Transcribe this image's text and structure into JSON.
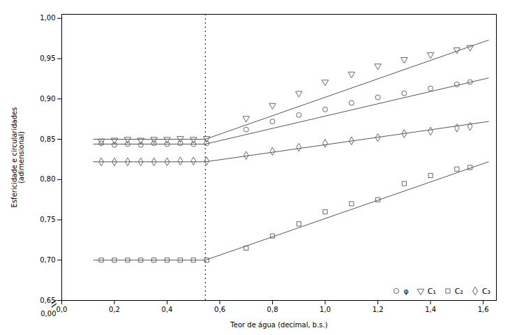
{
  "chart_data": {
    "type": "scatter",
    "xlabel": "Teor de água (decimal, b.s.)",
    "ylabel": "Esfericidade e circularidades\n(adimensional)",
    "xlim": [
      0.0,
      1.65
    ],
    "ylim": [
      0.65,
      1.005
    ],
    "xticks": [
      {
        "value": 0.0,
        "label": "0,0"
      },
      {
        "value": 0.2,
        "label": "0,2"
      },
      {
        "value": 0.4,
        "label": "0,4"
      },
      {
        "value": 0.6,
        "label": "0,6"
      },
      {
        "value": 0.8,
        "label": "0,8"
      },
      {
        "value": 1.0,
        "label": "1,0"
      },
      {
        "value": 1.2,
        "label": "1,2"
      },
      {
        "value": 1.4,
        "label": "1,4"
      },
      {
        "value": 1.6,
        "label": "1,6"
      }
    ],
    "yticks": [
      {
        "value": 0.65,
        "label": "0,65"
      },
      {
        "value": 0.7,
        "label": "0,70"
      },
      {
        "value": 0.75,
        "label": "0,75"
      },
      {
        "value": 0.8,
        "label": "0,80"
      },
      {
        "value": 0.85,
        "label": "0,85"
      },
      {
        "value": 0.9,
        "label": "0,90"
      },
      {
        "value": 0.95,
        "label": "0,95"
      },
      {
        "value": 1.0,
        "label": "1,00"
      }
    ],
    "grid": false,
    "legend": "lower right",
    "annotations": [
      {
        "text": "0,00"
      }
    ],
    "vlines": [
      {
        "x": 0.545,
        "color": "#000000",
        "line_style": "dotted"
      }
    ],
    "series": [
      {
        "name": "φ",
        "color": "#555555",
        "marker": "circle",
        "x": [
          0.15,
          0.2,
          0.25,
          0.3,
          0.35,
          0.4,
          0.45,
          0.5,
          0.55,
          0.7,
          0.8,
          0.9,
          1.0,
          1.1,
          1.2,
          1.3,
          1.4,
          1.5,
          1.55
        ],
        "values": [
          0.845,
          0.843,
          0.844,
          0.843,
          0.845,
          0.844,
          0.845,
          0.844,
          0.845,
          0.862,
          0.872,
          0.88,
          0.887,
          0.895,
          0.902,
          0.907,
          0.913,
          0.918,
          0.921
        ],
        "fit_x": [
          [
            0.12,
            0.545
          ],
          [
            0.545,
            1.62
          ]
        ],
        "fit_y": [
          [
            0.844,
            0.844
          ],
          [
            0.844,
            0.926
          ]
        ]
      },
      {
        "name": "C₁",
        "color": "#555555",
        "marker": "triangle-down",
        "x": [
          0.15,
          0.2,
          0.25,
          0.3,
          0.35,
          0.4,
          0.45,
          0.5,
          0.55,
          0.7,
          0.8,
          0.9,
          1.0,
          1.1,
          1.2,
          1.3,
          1.4,
          1.5,
          1.55
        ],
        "values": [
          0.848,
          0.849,
          0.85,
          0.849,
          0.85,
          0.85,
          0.851,
          0.85,
          0.851,
          0.876,
          0.892,
          0.907,
          0.921,
          0.931,
          0.941,
          0.949,
          0.955,
          0.961,
          0.964
        ],
        "fit_x": [
          [
            0.12,
            0.545
          ],
          [
            0.545,
            1.62
          ]
        ],
        "fit_y": [
          [
            0.85,
            0.85
          ],
          [
            0.85,
            0.973
          ]
        ]
      },
      {
        "name": "C₂",
        "color": "#555555",
        "marker": "square",
        "x": [
          0.15,
          0.2,
          0.25,
          0.3,
          0.35,
          0.4,
          0.45,
          0.5,
          0.55,
          0.7,
          0.8,
          0.9,
          1.0,
          1.1,
          1.2,
          1.3,
          1.4,
          1.5,
          1.55
        ],
        "values": [
          0.7,
          0.7,
          0.7,
          0.7,
          0.7,
          0.7,
          0.7,
          0.7,
          0.7,
          0.715,
          0.73,
          0.745,
          0.76,
          0.77,
          0.775,
          0.795,
          0.805,
          0.813,
          0.815
        ],
        "fit_x": [
          [
            0.12,
            0.545
          ],
          [
            0.545,
            1.62
          ]
        ],
        "fit_y": [
          [
            0.7,
            0.7
          ],
          [
            0.7,
            0.822
          ]
        ]
      },
      {
        "name": "C₃",
        "color": "#555555",
        "marker": "diamond",
        "x": [
          0.15,
          0.2,
          0.25,
          0.3,
          0.35,
          0.4,
          0.45,
          0.5,
          0.55,
          0.7,
          0.8,
          0.9,
          1.0,
          1.1,
          1.2,
          1.3,
          1.4,
          1.5,
          1.55
        ],
        "values": [
          0.822,
          0.822,
          0.822,
          0.822,
          0.822,
          0.822,
          0.823,
          0.823,
          0.823,
          0.83,
          0.835,
          0.84,
          0.845,
          0.848,
          0.852,
          0.857,
          0.86,
          0.864,
          0.866
        ],
        "fit_x": [
          [
            0.12,
            0.545
          ],
          [
            0.545,
            1.62
          ]
        ],
        "fit_y": [
          [
            0.822,
            0.822
          ],
          [
            0.822,
            0.872
          ]
        ]
      }
    ]
  }
}
